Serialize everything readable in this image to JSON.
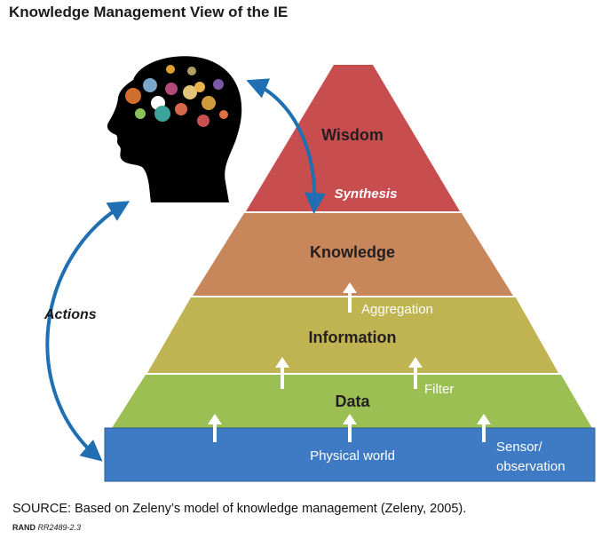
{
  "header": {
    "title": "Knowledge Management View of the IE"
  },
  "pyramid": {
    "levels": [
      {
        "id": "wisdom",
        "label": "Wisdom",
        "color": "#c84d4f"
      },
      {
        "id": "knowledge",
        "label": "Knowledge",
        "color": "#c7875a"
      },
      {
        "id": "information",
        "label": "Information",
        "color": "#c0b352"
      },
      {
        "id": "data",
        "label": "Data",
        "color": "#9bbf52"
      }
    ],
    "base": {
      "label": "Physical world",
      "color": "#3e7bc4"
    },
    "process_labels": {
      "synthesis": "Synthesis",
      "aggregation": "Aggregation",
      "filter": "Filter",
      "sensor_line1": "Sensor/",
      "sensor_line2": "observation"
    }
  },
  "cycle": {
    "actions_label": "Actions",
    "arrow_color": "#1f6fb2"
  },
  "footer": {
    "source": "SOURCE: Based on Zeleny’s model of knowledge management (Zeleny, 2005).",
    "rand_brand": "RAND",
    "rand_code": "RR2489-2.3"
  }
}
